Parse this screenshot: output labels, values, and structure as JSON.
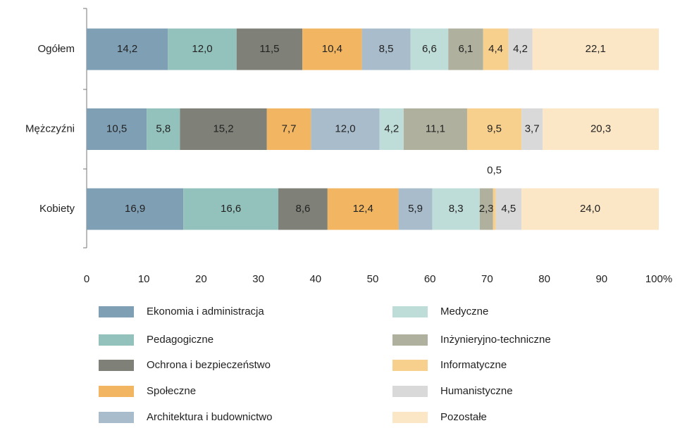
{
  "chart_data": {
    "type": "stacked-bar-horizontal",
    "categories": [
      "Ogółem",
      "Mężczyźni",
      "Kobiety"
    ],
    "xlim": [
      0,
      100
    ],
    "xticks": [
      0,
      10,
      20,
      30,
      40,
      50,
      60,
      70,
      80,
      90,
      {
        "value": 100,
        "label": "100%"
      }
    ],
    "series": [
      {
        "name": "Ekonomia i administracja",
        "color": "#7f9fb5",
        "values": [
          14.2,
          10.5,
          16.9
        ],
        "value_labels": [
          "14,2",
          "10,5",
          "16,9"
        ]
      },
      {
        "name": "Pedagogiczne",
        "color": "#93c2bc",
        "values": [
          12.0,
          5.8,
          16.6
        ],
        "value_labels": [
          "12,0",
          "5,8",
          "16,6"
        ]
      },
      {
        "name": "Ochrona i bezpieczeństwo",
        "color": "#7f8077",
        "values": [
          11.5,
          15.2,
          8.6
        ],
        "value_labels": [
          "11,5",
          "15,2",
          "8,6"
        ]
      },
      {
        "name": "Społeczne",
        "color": "#f2b662",
        "values": [
          10.4,
          7.7,
          12.4
        ],
        "value_labels": [
          "10,4",
          "7,7",
          "12,4"
        ]
      },
      {
        "name": "Architektura i budownictwo",
        "color": "#a9bccb",
        "values": [
          8.5,
          12.0,
          5.9
        ],
        "value_labels": [
          "8,5",
          "12,0",
          "5,9"
        ]
      },
      {
        "name": "Medyczne",
        "color": "#bfddd8",
        "values": [
          6.6,
          4.2,
          8.3
        ],
        "value_labels": [
          "6,6",
          "4,2",
          "8,3"
        ]
      },
      {
        "name": "Inżynieryjno-techniczne",
        "color": "#b0b09f",
        "values": [
          6.1,
          11.1,
          2.3
        ],
        "value_labels": [
          "6,1",
          "11,1",
          "2,3"
        ]
      },
      {
        "name": "Informatyczne",
        "color": "#f8d08e",
        "values": [
          4.4,
          9.5,
          0.5
        ],
        "value_labels": [
          "4,4",
          "9,5",
          "0,5"
        ]
      },
      {
        "name": "Humanistyczne",
        "color": "#d9d9d9",
        "values": [
          4.2,
          3.7,
          4.5
        ],
        "value_labels": [
          "4,2",
          "3,7",
          "4,5"
        ]
      },
      {
        "name": "Pozostałe",
        "color": "#fbe6c5",
        "values": [
          22.1,
          20.3,
          24.0
        ],
        "value_labels": [
          "22,1",
          "20,3",
          "24,0"
        ]
      }
    ]
  }
}
